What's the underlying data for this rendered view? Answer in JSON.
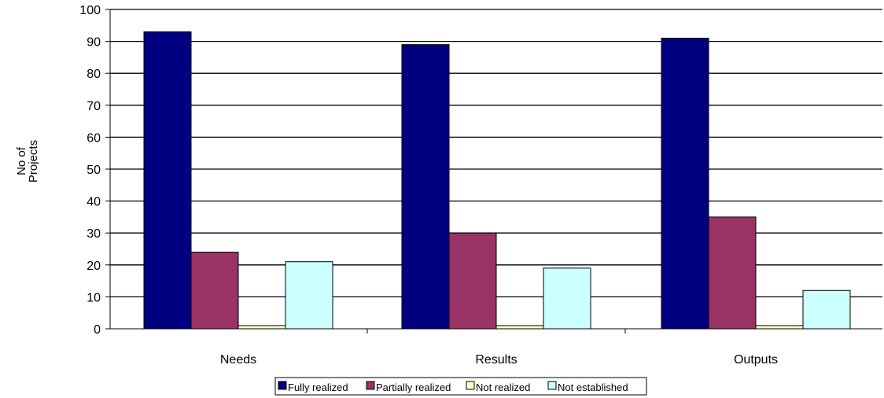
{
  "chart_data": {
    "type": "bar",
    "title": "",
    "xlabel": "",
    "ylabel_lines": [
      "No of",
      "Projects"
    ],
    "categories": [
      "Needs",
      "Results",
      "Outputs"
    ],
    "ylim": [
      0,
      100
    ],
    "yticks": [
      0,
      10,
      20,
      30,
      40,
      50,
      60,
      70,
      80,
      90,
      100
    ],
    "grid": true,
    "legend_position": "bottom",
    "series": [
      {
        "name": "Fully realized",
        "color": "#000080",
        "values": [
          93,
          89,
          91
        ]
      },
      {
        "name": "Partially realized",
        "color": "#993366",
        "values": [
          24,
          30,
          35
        ]
      },
      {
        "name": "Not realized",
        "color": "#FFFFCC",
        "values": [
          1,
          1,
          1
        ]
      },
      {
        "name": "Not established",
        "color": "#CCFFFF",
        "values": [
          21,
          19,
          12
        ]
      }
    ]
  }
}
